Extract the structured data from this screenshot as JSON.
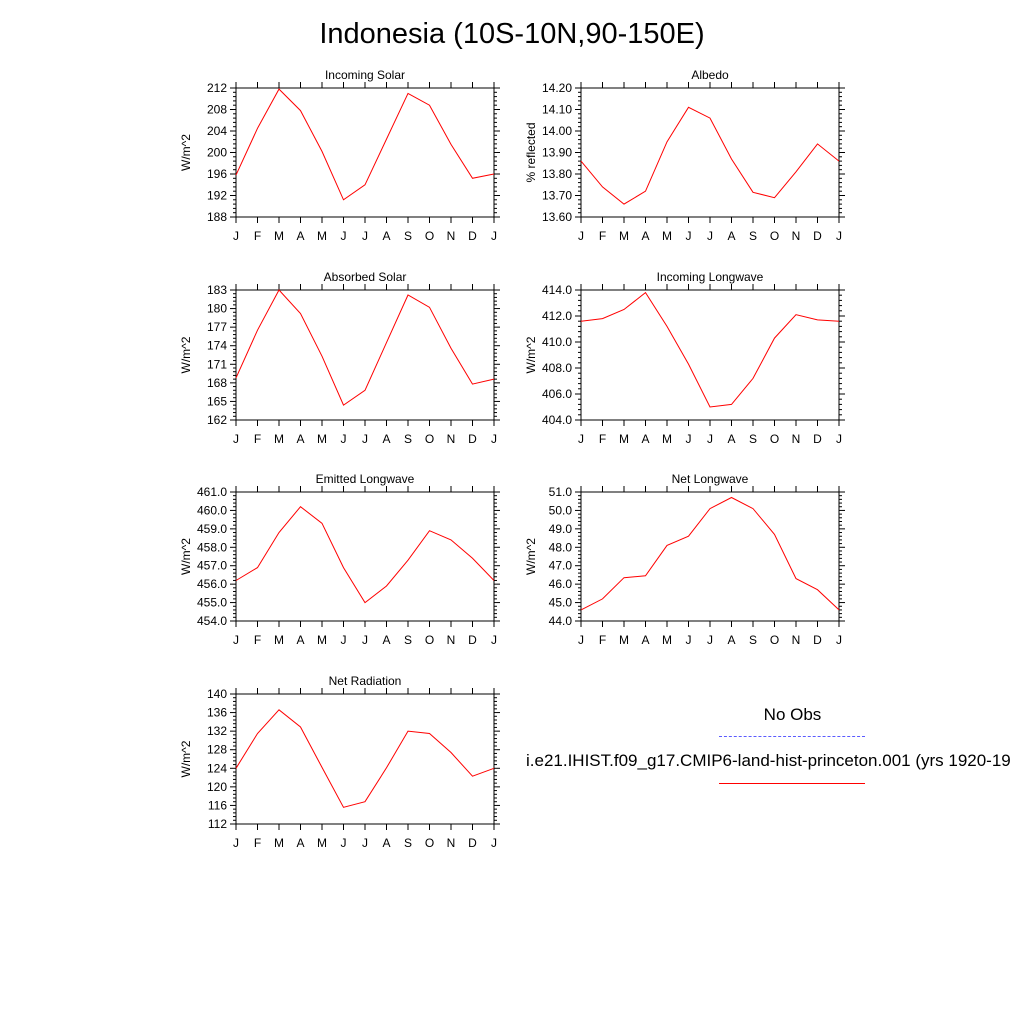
{
  "title": "Indonesia (10S-10N,90-150E)",
  "legend": {
    "obs_label": "No Obs",
    "obs_color": "#5b5bff",
    "case_label": "i.e21.IHIST.f09_g17.CMIP6-land-hist-princeton.001 (yrs 1920-19",
    "case_color": "#ff0000"
  },
  "chart_data": [
    {
      "type": "line",
      "title": "Incoming Solar",
      "ylabel": "W/m^2",
      "x": [
        "J",
        "F",
        "M",
        "A",
        "M",
        "J",
        "J",
        "A",
        "S",
        "O",
        "N",
        "D",
        "J"
      ],
      "ylim": [
        188,
        212
      ],
      "yticks": [
        "188",
        "192",
        "196",
        "200",
        "204",
        "208",
        "212"
      ],
      "series": [
        {
          "values": [
            195.8,
            204.5,
            211.8,
            207.8,
            200.2,
            191.2,
            194.0,
            202.5,
            211.0,
            208.8,
            201.5,
            195.2,
            196.0
          ],
          "color": "#ff0000"
        }
      ]
    },
    {
      "type": "line",
      "title": "Albedo",
      "ylabel": "% reflected",
      "x": [
        "J",
        "F",
        "M",
        "A",
        "M",
        "J",
        "J",
        "A",
        "S",
        "O",
        "N",
        "D",
        "J"
      ],
      "ylim": [
        13.6,
        14.2
      ],
      "yticks": [
        "13.60",
        "13.70",
        "13.80",
        "13.90",
        "14.00",
        "14.10",
        "14.20"
      ],
      "series": [
        {
          "values": [
            13.86,
            13.74,
            13.66,
            13.72,
            13.95,
            14.11,
            14.06,
            13.87,
            13.715,
            13.69,
            13.81,
            13.94,
            13.86
          ],
          "color": "#ff0000"
        }
      ]
    },
    {
      "type": "line",
      "title": "Absorbed Solar",
      "ylabel": "W/m^2",
      "x": [
        "J",
        "F",
        "M",
        "A",
        "M",
        "J",
        "J",
        "A",
        "S",
        "O",
        "N",
        "D",
        "J"
      ],
      "ylim": [
        162,
        183
      ],
      "yticks": [
        "162",
        "165",
        "168",
        "171",
        "174",
        "177",
        "180",
        "183"
      ],
      "series": [
        {
          "values": [
            168.8,
            176.5,
            183.0,
            179.2,
            172.3,
            164.4,
            166.8,
            174.5,
            182.2,
            180.2,
            173.6,
            167.8,
            168.6
          ],
          "color": "#ff0000"
        }
      ]
    },
    {
      "type": "line",
      "title": "Incoming Longwave",
      "ylabel": "W/m^2",
      "x": [
        "J",
        "F",
        "M",
        "A",
        "M",
        "J",
        "J",
        "A",
        "S",
        "O",
        "N",
        "D",
        "J"
      ],
      "ylim": [
        404.0,
        414.0
      ],
      "yticks": [
        "404.0",
        "406.0",
        "408.0",
        "410.0",
        "412.0",
        "414.0"
      ],
      "series": [
        {
          "values": [
            411.6,
            411.8,
            412.5,
            413.8,
            411.2,
            408.3,
            405.0,
            405.2,
            407.2,
            410.3,
            412.1,
            411.7,
            411.6
          ],
          "color": "#ff0000"
        }
      ]
    },
    {
      "type": "line",
      "title": "Emitted Longwave",
      "ylabel": "W/m^2",
      "x": [
        "J",
        "F",
        "M",
        "A",
        "M",
        "J",
        "J",
        "A",
        "S",
        "O",
        "N",
        "D",
        "J"
      ],
      "ylim": [
        454.0,
        461.0
      ],
      "yticks": [
        "454.0",
        "455.0",
        "456.0",
        "457.0",
        "458.0",
        "459.0",
        "460.0",
        "461.0"
      ],
      "series": [
        {
          "values": [
            456.2,
            456.9,
            458.8,
            460.2,
            459.3,
            456.9,
            455.0,
            455.9,
            457.3,
            458.9,
            458.4,
            457.4,
            456.2
          ],
          "color": "#ff0000"
        }
      ]
    },
    {
      "type": "line",
      "title": "Net Longwave",
      "ylabel": "W/m^2",
      "x": [
        "J",
        "F",
        "M",
        "A",
        "M",
        "J",
        "J",
        "A",
        "S",
        "O",
        "N",
        "D",
        "J"
      ],
      "ylim": [
        44.0,
        51.0
      ],
      "yticks": [
        "44.0",
        "45.0",
        "46.0",
        "47.0",
        "48.0",
        "49.0",
        "50.0",
        "51.0"
      ],
      "series": [
        {
          "values": [
            44.6,
            45.2,
            46.35,
            46.45,
            48.1,
            48.6,
            50.1,
            50.7,
            50.1,
            48.7,
            46.3,
            45.7,
            44.6
          ],
          "color": "#ff0000"
        }
      ]
    },
    {
      "type": "line",
      "title": "Net Radiation",
      "ylabel": "W/m^2",
      "x": [
        "J",
        "F",
        "M",
        "A",
        "M",
        "J",
        "J",
        "A",
        "S",
        "O",
        "N",
        "D",
        "J"
      ],
      "ylim": [
        112,
        140
      ],
      "yticks": [
        "112",
        "116",
        "120",
        "124",
        "128",
        "132",
        "136",
        "140"
      ],
      "series": [
        {
          "values": [
            124.0,
            131.5,
            136.6,
            132.9,
            124.2,
            115.6,
            116.8,
            124.1,
            132.0,
            131.5,
            127.4,
            122.3,
            124.0
          ],
          "color": "#ff0000"
        }
      ]
    }
  ]
}
